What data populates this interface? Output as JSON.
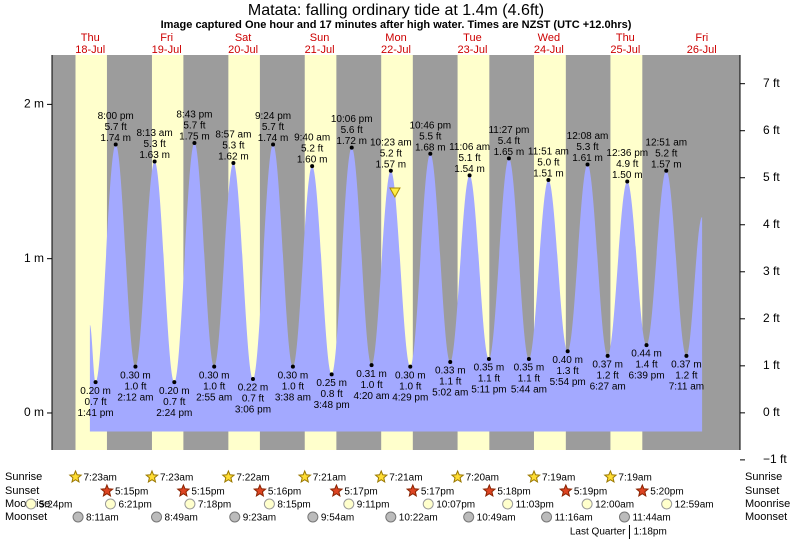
{
  "chart_data": {
    "type": "area",
    "title": "Matata: falling  ordinary tide at 1.4m (4.6ft)",
    "subtitle": "Image captured One hour and 17 minutes after high water. Times are NZST (UTC +12.0hrs)",
    "days": [
      "Thu",
      "Fri",
      "Sat",
      "Sun",
      "Mon",
      "Tue",
      "Wed",
      "Thu",
      "Fri"
    ],
    "dates": [
      "18-Jul",
      "19-Jul",
      "20-Jul",
      "21-Jul",
      "22-Jul",
      "23-Jul",
      "24-Jul",
      "25-Jul",
      "26-Jul"
    ],
    "xlim": [
      0,
      216
    ],
    "ylim": [
      -0.24,
      2.32
    ],
    "yticks": [
      {
        "value": 0,
        "label": "0 m"
      },
      {
        "value": 1,
        "label": "1 m"
      },
      {
        "value": 2,
        "label": "2 m"
      }
    ],
    "y2lim": [
      -0.79,
      7.61
    ],
    "y2ticks": [
      {
        "value": -1,
        "label": "−1 ft"
      },
      {
        "value": 0,
        "label": "0 ft"
      },
      {
        "value": 1,
        "label": "1 ft"
      },
      {
        "value": 2,
        "label": "2 ft"
      },
      {
        "value": 3,
        "label": "3 ft"
      },
      {
        "value": 4,
        "label": "4 ft"
      },
      {
        "value": 5,
        "label": "5 ft"
      },
      {
        "value": 6,
        "label": "6 ft"
      },
      {
        "value": 7,
        "label": "7 ft"
      }
    ],
    "area_base": -0.12,
    "color": "#a3a9ff",
    "night_color": "#9c9c9c",
    "daylight_color": "#ffffcc",
    "x": [
      11.9,
      13.68,
      20.0,
      26.2,
      32.22,
      38.4,
      44.72,
      50.92,
      56.95,
      63.1,
      69.4,
      75.63,
      81.67,
      87.8,
      94.1,
      100.33,
      106.38,
      112.48,
      118.77,
      125.03,
      131.1,
      137.18,
      143.45,
      149.73,
      155.85,
      161.9,
      168.13,
      174.45,
      180.6,
      186.65,
      192.85,
      199.18,
      204.1
    ],
    "values": [
      0.57,
      0.2,
      1.74,
      0.3,
      1.63,
      0.2,
      1.75,
      0.3,
      1.62,
      0.22,
      1.74,
      0.3,
      1.6,
      0.25,
      1.72,
      0.31,
      1.57,
      0.3,
      1.68,
      0.33,
      1.54,
      0.35,
      1.65,
      0.35,
      1.51,
      0.4,
      1.61,
      0.37,
      1.5,
      0.44,
      1.57,
      0.37,
      1.27
    ],
    "value_labels": [
      null,
      "0.20 m",
      "1.74 m",
      "0.30 m",
      "1.63 m",
      "0.20 m",
      "1.75 m",
      "0.30 m",
      "1.62 m",
      "0.22 m",
      "1.74 m",
      "0.30 m",
      "1.60 m",
      "0.25 m",
      "1.72 m",
      "0.31 m",
      "1.57 m",
      "0.30 m",
      "1.68 m",
      "0.33 m",
      "1.54 m",
      "0.35 m",
      "1.65 m",
      "0.35 m",
      "1.51 m",
      "0.40 m",
      "1.61 m",
      "0.37 m",
      "1.50 m",
      "0.44 m",
      "1.57 m",
      "0.37 m",
      null
    ],
    "feet_labels": [
      null,
      "0.7 ft",
      "5.7 ft",
      "1.0 ft",
      "5.3 ft",
      "0.7 ft",
      "5.7 ft",
      "1.0 ft",
      "5.3 ft",
      "0.7 ft",
      "5.7 ft",
      "1.0 ft",
      "5.2 ft",
      "0.8 ft",
      "5.6 ft",
      "1.0 ft",
      "5.2 ft",
      "1.0 ft",
      "5.5 ft",
      "1.1 ft",
      "5.1 ft",
      "1.1 ft",
      "5.4 ft",
      "1.1 ft",
      "5.0 ft",
      "1.3 ft",
      "5.3 ft",
      "1.2 ft",
      "4.9 ft",
      "1.4 ft",
      "5.2 ft",
      "1.2 ft",
      null
    ],
    "time_labels": [
      null,
      "1:41 pm",
      "8:00 pm",
      "2:12 am",
      "8:13 am",
      "2:24 pm",
      "8:43 pm",
      "2:55 am",
      "8:57 am",
      "3:06 pm",
      "9:24 pm",
      "3:38 am",
      "9:40 am",
      "3:48 pm",
      "10:06 pm",
      "4:20 am",
      "10:23 am",
      "4:29 pm",
      "10:46 pm",
      "5:02 am",
      "11:06 am",
      "5:11 pm",
      "11:27 pm",
      "5:44 am",
      "11:51 am",
      "5:54 pm",
      "12:08 am",
      "6:27 am",
      "12:36 pm",
      "6:39 pm",
      "12:51 am",
      "7:11 am",
      null
    ],
    "current": {
      "x": 107.67,
      "value": 1.4
    },
    "sunrise": {
      "label": "Sunrise",
      "times": [
        "7:23am",
        "7:23am",
        "7:22am",
        "7:21am",
        "7:21am",
        "7:20am",
        "7:19am",
        "7:19am"
      ],
      "x": [
        7.38,
        31.38,
        55.37,
        79.35,
        103.35,
        127.33,
        151.32,
        175.32
      ]
    },
    "sunset": {
      "label": "Sunset",
      "times": [
        "5:15pm",
        "5:15pm",
        "5:16pm",
        "5:17pm",
        "5:17pm",
        "5:18pm",
        "5:19pm",
        "5:20pm"
      ],
      "x": [
        17.25,
        41.25,
        65.27,
        89.28,
        113.28,
        137.3,
        161.32,
        185.33
      ]
    },
    "moonrise": {
      "label": "Moonrise",
      "times": [
        "5:24pm",
        "6:21pm",
        "7:18pm",
        "8:15pm",
        "9:11pm",
        "10:07pm",
        "11:03pm",
        "12:00am",
        "12:59am"
      ],
      "x": [
        -6.6,
        18.35,
        43.3,
        68.25,
        93.18,
        118.12,
        143.05,
        168.0,
        192.98
      ]
    },
    "moonset": {
      "label": "Moonset",
      "times": [
        "8:11am",
        "8:49am",
        "9:23am",
        "9:54am",
        "10:22am",
        "10:49am",
        "11:16am",
        "11:44am"
      ],
      "x": [
        8.18,
        32.82,
        57.38,
        81.9,
        106.37,
        130.82,
        155.27,
        179.73
      ]
    },
    "moon_phase": {
      "name": "Last Quarter",
      "time": "1:18pm",
      "x": 181.3
    }
  }
}
